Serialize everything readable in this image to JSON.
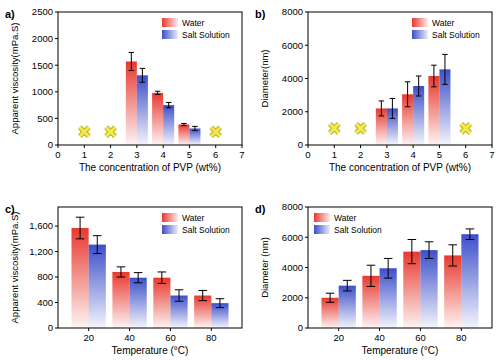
{
  "chart_data": [
    {
      "type": "bar",
      "title": "a)",
      "x_label": "The concentration of PVP (wt%)",
      "y_label": "Apparent viscosity(mPa.S)",
      "xlim": [
        0,
        7
      ],
      "xticks": [
        0,
        1,
        2,
        3,
        4,
        5,
        6,
        7
      ],
      "ylim": [
        0,
        2500
      ],
      "yticks": [
        0,
        500,
        1000,
        1500,
        2000,
        2500
      ],
      "legend": "upper right",
      "series": [
        {
          "name": "Water",
          "color": "#e8392f",
          "x": [
            3,
            4,
            5
          ],
          "values": [
            1570,
            980,
            385
          ],
          "errors": [
            170,
            30,
            20
          ]
        },
        {
          "name": "Salt Solution",
          "color": "#3d4fc9",
          "x": [
            3,
            4,
            5
          ],
          "values": [
            1310,
            750,
            310
          ],
          "errors": [
            130,
            50,
            40
          ]
        },
        {
          "type": "scatter",
          "marker": "x",
          "color": "#f2ea4a",
          "x": [
            1,
            2,
            6
          ],
          "values": [
            250,
            250,
            250
          ]
        }
      ]
    },
    {
      "type": "bar",
      "title": "b)",
      "x_label": "The concentration of PVP (wt%)",
      "y_label": "Diameter(nm)",
      "xlim": [
        0,
        7
      ],
      "xticks": [
        0,
        1,
        2,
        3,
        4,
        5,
        6,
        7
      ],
      "ylim": [
        0,
        8000
      ],
      "yticks": [
        0,
        2000,
        4000,
        6000,
        8000
      ],
      "legend": "upper right",
      "series": [
        {
          "name": "Water",
          "color": "#e8392f",
          "x": [
            3,
            4,
            5
          ],
          "values": [
            2200,
            3050,
            4150
          ],
          "errors": [
            450,
            750,
            650
          ]
        },
        {
          "name": "Salt Solution",
          "color": "#3d4fc9",
          "x": [
            3,
            4,
            5
          ],
          "values": [
            2200,
            3550,
            4550
          ],
          "errors": [
            600,
            600,
            900
          ]
        },
        {
          "type": "scatter",
          "marker": "x",
          "color": "#f2ea4a",
          "x": [
            1,
            2,
            6
          ],
          "values": [
            1000,
            1000,
            1000
          ]
        }
      ]
    },
    {
      "type": "bar",
      "title": "c)",
      "x_label": "Temperature (°C)",
      "y_label": "Apparent viscosity(mPa.S)",
      "xlim": [
        5,
        95
      ],
      "xticks": [
        20,
        40,
        60,
        80
      ],
      "ylim": [
        0,
        1900
      ],
      "yticks": [
        0,
        400,
        800,
        {
          "value": 1200,
          "label": "1,200"
        },
        {
          "value": 1600,
          "label": "1,600"
        }
      ],
      "legend": "upper right",
      "series": [
        {
          "name": "Water",
          "color": "#e8392f",
          "x": [
            20,
            40,
            60,
            80
          ],
          "values": [
            1570,
            880,
            790,
            510
          ],
          "errors": [
            170,
            80,
            90,
            80
          ]
        },
        {
          "name": "Salt Solution",
          "color": "#3d4fc9",
          "x": [
            20,
            40,
            60,
            80
          ],
          "values": [
            1310,
            790,
            510,
            390
          ],
          "errors": [
            140,
            80,
            90,
            70
          ]
        }
      ]
    },
    {
      "type": "bar",
      "title": "d)",
      "x_label": "Temperature (°C)",
      "y_label": "Diameter (nm)",
      "xlim": [
        5,
        95
      ],
      "xticks": [
        20,
        40,
        60,
        80
      ],
      "ylim": [
        0,
        8000
      ],
      "yticks": [
        0,
        2000,
        4000,
        6000,
        8000
      ],
      "legend": "upper left",
      "series": [
        {
          "name": "Water",
          "color": "#e8392f",
          "x": [
            20,
            40,
            60,
            80
          ],
          "values": [
            2000,
            3450,
            5050,
            4800
          ],
          "errors": [
            300,
            700,
            800,
            700
          ]
        },
        {
          "name": "Salt Solution",
          "color": "#3d4fc9",
          "x": [
            20,
            40,
            60,
            80
          ],
          "values": [
            2800,
            3950,
            5150,
            6200
          ],
          "errors": [
            350,
            650,
            550,
            350
          ]
        }
      ]
    }
  ]
}
